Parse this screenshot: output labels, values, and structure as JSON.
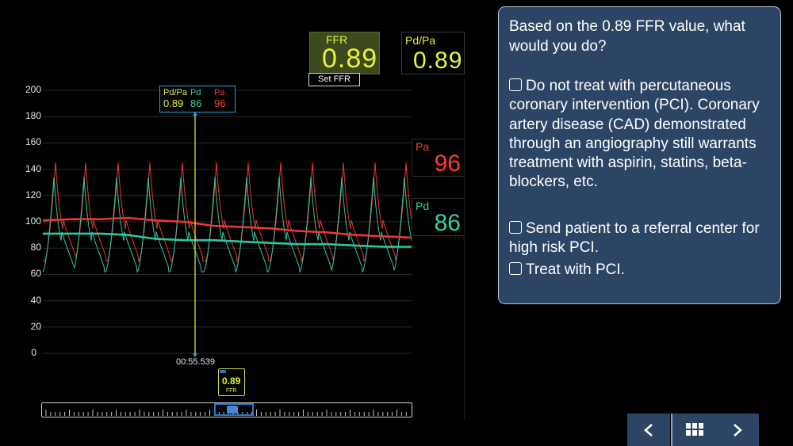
{
  "ffr_box": {
    "label": "FFR",
    "value": "0.89",
    "set_label": "Set FFR"
  },
  "pdpa_box": {
    "label": "Pd/Pa",
    "value": "0.89"
  },
  "pa_box": {
    "label": "Pa",
    "value": "96"
  },
  "pd_box": {
    "label": "Pd",
    "value": "86"
  },
  "cursor": {
    "pdpa_label": "Pd/Pa",
    "pd_label": "Pd",
    "pa_label": "Pa",
    "pdpa_value": "0.89",
    "pd_value": "86",
    "pa_value": "96",
    "time": "00:55.539"
  },
  "scrub_marker": {
    "value": "0.89",
    "label": "FFR"
  },
  "chart": {
    "y_ticks": [
      "200",
      "180",
      "160",
      "140",
      "120",
      "100",
      "80",
      "60",
      "40",
      "20",
      "0"
    ],
    "colors": {
      "pa": "#e8392f",
      "pd": "#2fc7a4",
      "cursor": "#e9f23a",
      "grid": "#2a2a2a"
    }
  },
  "chart_data": {
    "type": "line",
    "title": "",
    "xlabel": "",
    "ylabel": "",
    "ylim": [
      0,
      200
    ],
    "series": [
      {
        "name": "Pa",
        "mean_values": [
          101,
          102,
          102,
          103,
          101,
          100,
          97,
          96,
          95,
          93,
          92,
          90,
          89,
          88
        ]
      },
      {
        "name": "Pd",
        "mean_values": [
          91,
          91,
          91,
          90,
          87,
          86,
          86,
          85,
          84,
          83,
          83,
          82,
          81,
          81
        ]
      }
    ]
  },
  "question": {
    "title": "Based on the 0.89 FFR value, what would you do?",
    "options": [
      "Do not treat with percutaneous coronary intervention (PCI). Coronary artery disease (CAD) demonstrated through an angiography still warrants treatment with aspirin, statins, beta-blockers, etc.",
      "Send patient to a referral center for high risk PCI.",
      "Treat with PCI."
    ]
  },
  "nav": {
    "prev": "‹",
    "grid": "▦",
    "next": "›"
  }
}
